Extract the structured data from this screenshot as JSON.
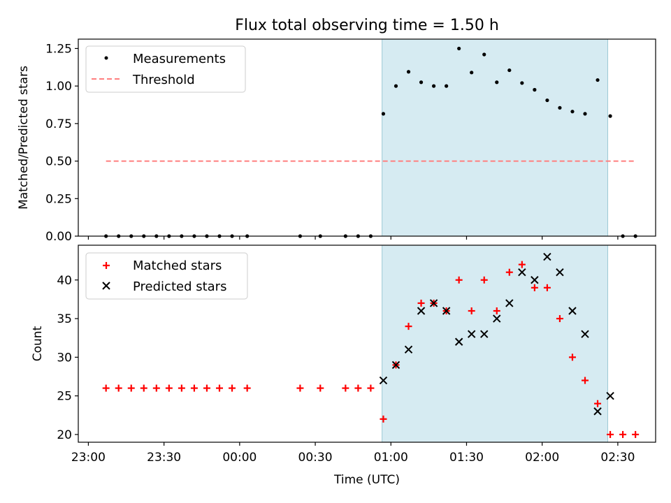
{
  "chart_data": {
    "type": "scatter",
    "title": "Flux total observing time = 1.50 h",
    "xlabel": "Time (UTC)",
    "x_ticks": [
      "23:00",
      "23:30",
      "00:00",
      "00:30",
      "01:00",
      "01:30",
      "02:00",
      "02:30"
    ],
    "x_tick_minutes": [
      0,
      30,
      60,
      90,
      120,
      150,
      180,
      210
    ],
    "x_range_minutes": [
      -4,
      225
    ],
    "observing_window_minutes": [
      116.5,
      206
    ],
    "window_color": "#add8e6",
    "panels": [
      {
        "id": "ratio",
        "ylabel": "Matched/Predicted stars",
        "ylim": [
          0,
          1.3125
        ],
        "y_ticks": [
          "0.00",
          "0.25",
          "0.50",
          "0.75",
          "1.00",
          "1.25"
        ],
        "y_tick_values": [
          0,
          0.25,
          0.5,
          0.75,
          1.0,
          1.25
        ],
        "legend": {
          "location": "upper left"
        },
        "series": [
          {
            "name": "Measurements",
            "marker": "dot",
            "color": "#000000",
            "x": [
              7,
              12,
              17,
              22,
              27,
              32,
              37,
              42,
              47,
              52,
              57,
              63,
              84,
              92,
              102,
              107,
              112,
              117,
              122,
              127,
              132,
              137,
              142,
              147,
              152,
              157,
              162,
              167,
              172,
              177,
              182,
              187,
              192,
              197,
              202,
              207,
              212,
              217
            ],
            "y": [
              0,
              0,
              0,
              0,
              0,
              0,
              0,
              0,
              0,
              0,
              0,
              0,
              0,
              0,
              0,
              0,
              0,
              0.815,
              1.0,
              1.095,
              1.025,
              1.0,
              1.0,
              1.25,
              1.09,
              1.21,
              1.025,
              1.105,
              1.02,
              0.975,
              0.905,
              0.855,
              0.83,
              0.815,
              1.04,
              0.8,
              0,
              0
            ]
          },
          {
            "name": "Threshold",
            "line": "dashed",
            "color": "#ff7f7f",
            "x": [
              7,
              217
            ],
            "y": [
              0.5,
              0.5
            ]
          }
        ]
      },
      {
        "id": "count",
        "ylabel": "Count",
        "ylim": [
          19,
          44.5
        ],
        "y_ticks": [
          "20",
          "25",
          "30",
          "35",
          "40"
        ],
        "y_tick_values": [
          20,
          25,
          30,
          35,
          40
        ],
        "legend": {
          "location": "upper left"
        },
        "series": [
          {
            "name": "Matched stars",
            "marker": "plus",
            "color": "#ff0000",
            "x": [
              7,
              12,
              17,
              22,
              27,
              32,
              37,
              42,
              47,
              52,
              57,
              63,
              84,
              92,
              102,
              107,
              112,
              117,
              122,
              127,
              132,
              137,
              142,
              147,
              152,
              157,
              162,
              167,
              172,
              177,
              182,
              187,
              192,
              197,
              202,
              207,
              212,
              217
            ],
            "y": [
              26,
              26,
              26,
              26,
              26,
              26,
              26,
              26,
              26,
              26,
              26,
              26,
              26,
              26,
              26,
              26,
              26,
              22,
              29,
              34,
              37,
              37,
              36,
              40,
              36,
              40,
              36,
              41,
              42,
              39,
              39,
              35,
              30,
              27,
              24,
              20,
              20,
              20
            ]
          },
          {
            "name": "Predicted stars",
            "marker": "x",
            "color": "#000000",
            "x": [
              117,
              122,
              127,
              132,
              137,
              142,
              147,
              152,
              157,
              162,
              167,
              172,
              177,
              182,
              187,
              192,
              197,
              202,
              207
            ],
            "y": [
              27,
              29,
              31,
              36,
              37,
              36,
              32,
              33,
              33,
              35,
              37,
              41,
              40,
              43,
              41,
              36,
              33,
              23,
              25
            ]
          }
        ]
      }
    ]
  }
}
